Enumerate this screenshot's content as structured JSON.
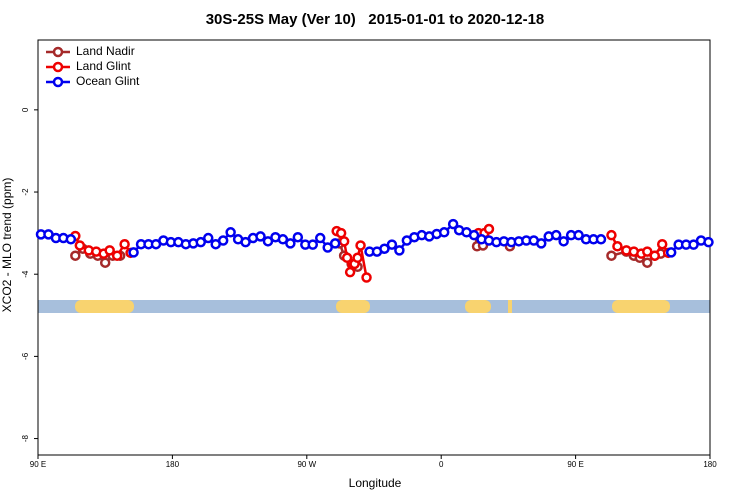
{
  "chart_data": {
    "type": "line",
    "title": "30S-25S May (Ver 10)   2015-01-01 to 2020-12-18",
    "x_label": "Longitude",
    "y_label": "XCO2 - MLO trend (ppm)",
    "xlim": [
      90,
      540
    ],
    "xticks": [
      {
        "value": 90,
        "label": "90 E"
      },
      {
        "value": 180,
        "label": "180"
      },
      {
        "value": 270,
        "label": "90 W"
      },
      {
        "value": 360,
        "label": "0"
      },
      {
        "value": 450,
        "label": "90 E"
      },
      {
        "value": 540,
        "label": "180"
      }
    ],
    "ylim": [
      -8.4,
      1.7
    ],
    "yticks": [
      0,
      -2,
      -4,
      -6,
      -8
    ],
    "legend": "topleft",
    "series": [
      {
        "name": "Land Nadir",
        "color": "#a52a2a",
        "x": [
          115,
          120,
          125,
          130,
          135,
          140,
          145,
          146,
          292,
          295,
          300,
          304,
          305,
          383,
          384,
          388,
          390,
          406,
          407,
          474,
          484,
          489,
          493,
          498,
          503,
          507
        ],
        "values": [
          -3.55,
          -3.38,
          -3.5,
          -3.55,
          -3.72,
          -3.55,
          -3.55,
          null,
          -3.25,
          -3.55,
          -3.75,
          -3.82,
          null,
          -3.05,
          -3.32,
          -3.3,
          null,
          -3.32,
          null,
          -3.55,
          -3.45,
          -3.55,
          -3.6,
          -3.72,
          -3.55,
          -3.5
        ]
      },
      {
        "name": "Land Glint",
        "color": "#ee0000",
        "x": [
          115,
          118,
          124,
          129,
          134,
          138,
          143,
          148,
          152,
          200,
          290,
          293,
          295,
          297,
          299,
          302,
          304,
          306,
          310,
          350,
          385,
          389,
          392,
          430,
          474,
          478,
          484,
          489,
          494,
          498,
          503,
          508,
          512
        ],
        "values": [
          -3.07,
          -3.3,
          -3.42,
          -3.45,
          -3.5,
          -3.42,
          -3.55,
          -3.27,
          -3.48,
          null,
          -2.95,
          -3.0,
          -3.2,
          -3.6,
          -3.95,
          -3.75,
          -3.6,
          -3.3,
          -4.08,
          null,
          -3.0,
          -3.0,
          -2.9,
          null,
          -3.05,
          -3.32,
          -3.42,
          -3.45,
          -3.5,
          -3.45,
          -3.55,
          -3.27,
          -3.48
        ]
      },
      {
        "name": "Ocean Glint",
        "color": "#0000ee",
        "x": [
          92,
          97,
          102,
          107,
          112,
          117,
          154,
          159,
          164,
          169,
          174,
          179,
          184,
          189,
          194,
          199,
          204,
          209,
          214,
          219,
          224,
          229,
          234,
          239,
          244,
          249,
          254,
          259,
          264,
          269,
          274,
          279,
          284,
          289,
          294,
          312,
          317,
          322,
          327,
          332,
          337,
          342,
          347,
          352,
          357,
          362,
          368,
          372,
          377,
          382,
          387,
          392,
          397,
          402,
          407,
          412,
          417,
          422,
          427,
          432,
          437,
          442,
          447,
          452,
          457,
          462,
          467,
          472,
          514,
          519,
          524,
          529,
          534,
          539
        ],
        "values": [
          -3.03,
          -3.03,
          -3.12,
          -3.12,
          -3.15,
          null,
          -3.47,
          -3.27,
          -3.27,
          -3.27,
          -3.18,
          -3.22,
          -3.22,
          -3.27,
          -3.25,
          -3.22,
          -3.12,
          -3.27,
          -3.18,
          -2.98,
          -3.15,
          -3.22,
          -3.12,
          -3.08,
          -3.2,
          -3.1,
          -3.15,
          -3.25,
          -3.1,
          -3.28,
          -3.28,
          -3.12,
          -3.35,
          -3.25,
          null,
          -3.45,
          -3.45,
          -3.38,
          -3.28,
          -3.42,
          -3.18,
          -3.1,
          -3.05,
          -3.08,
          -3.02,
          -2.98,
          -2.78,
          -2.93,
          -2.98,
          -3.05,
          -3.15,
          -3.18,
          -3.22,
          -3.2,
          -3.22,
          -3.2,
          -3.18,
          -3.18,
          -3.25,
          -3.08,
          -3.05,
          -3.2,
          -3.05,
          -3.05,
          -3.15,
          -3.15,
          -3.15,
          null,
          -3.47,
          -3.28,
          -3.28,
          -3.28,
          -3.18,
          -3.22
        ]
      }
    ]
  }
}
